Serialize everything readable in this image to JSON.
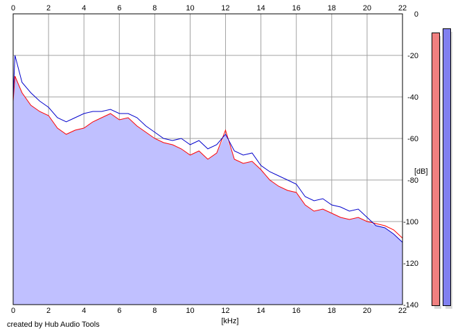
{
  "chart_data": {
    "type": "area",
    "xlabel": "[kHz]",
    "ylabel": "[dB]",
    "xlim": [
      0,
      22
    ],
    "ylim": [
      -140,
      0
    ],
    "x_ticks": [
      "0",
      "2",
      "4",
      "6",
      "8",
      "10",
      "12",
      "14",
      "16",
      "18",
      "20",
      "22"
    ],
    "y_ticks": [
      "0",
      "-20",
      "-40",
      "-60",
      "-80",
      "-100",
      "-120",
      "-140"
    ],
    "grid": true,
    "series": [
      {
        "color": "#ff0000",
        "x": [
          0,
          0.1,
          0.5,
          1,
          1.5,
          2,
          2.5,
          3,
          3.5,
          4,
          4.5,
          5,
          5.5,
          6,
          6.5,
          7,
          7.5,
          8,
          8.5,
          9,
          9.5,
          10,
          10.5,
          11,
          11.5,
          12,
          12.5,
          13,
          13.5,
          14,
          14.5,
          15,
          15.5,
          16,
          16.5,
          17,
          17.5,
          18,
          18.5,
          19,
          19.5,
          20,
          20.5,
          21,
          21.5,
          22
        ],
        "values": [
          -42,
          -30,
          -38,
          -44,
          -47,
          -49,
          -55,
          -58,
          -56,
          -55,
          -52,
          -50,
          -48,
          -51,
          -50,
          -54,
          -57,
          -60,
          -62,
          -63,
          -65,
          -68,
          -66,
          -70,
          -67,
          -56,
          -70,
          -72,
          -71,
          -75,
          -80,
          -83,
          -85,
          -86,
          -92,
          -95,
          -94,
          -96,
          -98,
          -99,
          -98,
          -100,
          -101,
          -102,
          -104,
          -108
        ]
      },
      {
        "color": "#0000cc",
        "x": [
          0,
          0.1,
          0.5,
          1,
          1.5,
          2,
          2.5,
          3,
          3.5,
          4,
          4.5,
          5,
          5.5,
          6,
          6.5,
          7,
          7.5,
          8,
          8.5,
          9,
          9.5,
          10,
          10.5,
          11,
          11.5,
          12,
          12.5,
          13,
          13.5,
          14,
          14.5,
          15,
          15.5,
          16,
          16.5,
          17,
          17.5,
          18,
          18.5,
          19,
          19.5,
          20,
          20.5,
          21,
          21.5,
          22
        ],
        "values": [
          -40,
          -20,
          -33,
          -38,
          -42,
          -45,
          -50,
          -52,
          -50,
          -48,
          -47,
          -47,
          -46,
          -48,
          -48,
          -50,
          -54,
          -57,
          -60,
          -61,
          -60,
          -63,
          -61,
          -65,
          -63,
          -58,
          -66,
          -68,
          -67,
          -73,
          -76,
          -78,
          -80,
          -82,
          -88,
          -90,
          -89,
          -92,
          -93,
          -95,
          -94,
          -98,
          -102,
          -103,
          -106,
          -110
        ]
      }
    ]
  },
  "meters": {
    "left_channel_color": "#f08080",
    "right_channel_color": "#8080f0",
    "left_level_db": -9,
    "right_level_db": -7
  },
  "footer": {
    "credit": "created by Hub Audio Tools"
  }
}
